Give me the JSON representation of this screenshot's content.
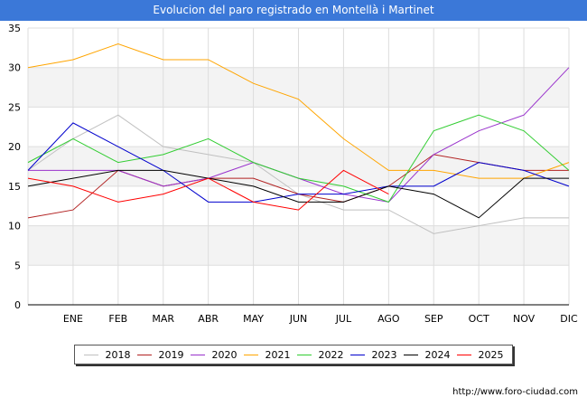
{
  "chart_data": {
    "type": "line",
    "title": "Evolucion del paro registrado en Montellà i Martinet",
    "categories": [
      "",
      "ENE",
      "FEB",
      "MAR",
      "ABR",
      "MAY",
      "JUN",
      "JUL",
      "AGO",
      "SEP",
      "OCT",
      "NOV",
      "DIC"
    ],
    "ylim": [
      0,
      35
    ],
    "yticks": [
      0,
      5,
      10,
      15,
      20,
      25,
      30,
      35
    ],
    "grid": true,
    "legend_position": "bottom",
    "series": [
      {
        "name": "2018",
        "color": "#c0c0c0",
        "values": [
          17,
          21,
          24,
          20,
          19,
          18,
          14,
          12,
          12,
          9,
          10,
          11,
          11
        ]
      },
      {
        "name": "2019",
        "color": "#b22222",
        "values": [
          11,
          12,
          17,
          15,
          16,
          16,
          14,
          13,
          15,
          19,
          18,
          17,
          17
        ]
      },
      {
        "name": "2020",
        "color": "#9932cc",
        "values": [
          17,
          17,
          17,
          15,
          16,
          18,
          16,
          14,
          13,
          19,
          22,
          24,
          30
        ]
      },
      {
        "name": "2021",
        "color": "#ffa500",
        "values": [
          30,
          31,
          33,
          31,
          31,
          28,
          26,
          21,
          17,
          17,
          16,
          16,
          18
        ]
      },
      {
        "name": "2022",
        "color": "#32cd32",
        "values": [
          18,
          21,
          18,
          19,
          21,
          18,
          16,
          15,
          13,
          22,
          24,
          22,
          17
        ]
      },
      {
        "name": "2023",
        "color": "#0000cd",
        "values": [
          17,
          23,
          20,
          17,
          13,
          13,
          14,
          14,
          15,
          15,
          18,
          17,
          15
        ]
      },
      {
        "name": "2024",
        "color": "#000000",
        "values": [
          15,
          16,
          17,
          17,
          16,
          15,
          13,
          13,
          15,
          14,
          11,
          16,
          16
        ]
      },
      {
        "name": "2025",
        "color": "#ff0000",
        "values": [
          16,
          15,
          13,
          14,
          16,
          13,
          12,
          17,
          14,
          null,
          null,
          null,
          null
        ]
      }
    ]
  },
  "footer": {
    "url": "http://www.foro-ciudad.com"
  }
}
